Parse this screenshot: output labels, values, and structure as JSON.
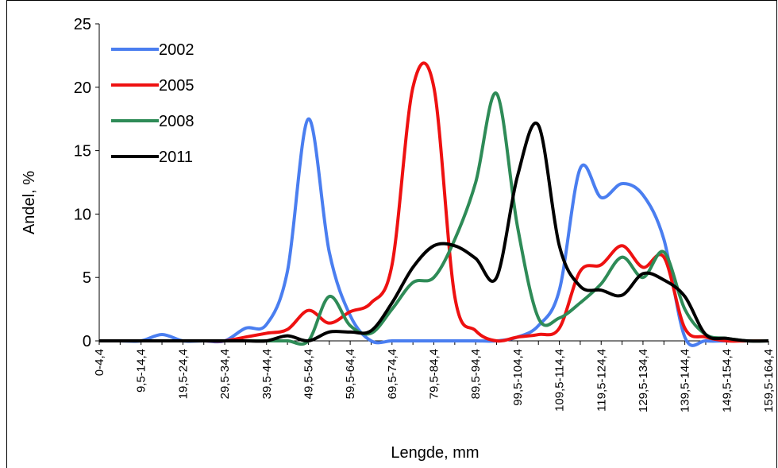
{
  "chart_data": {
    "type": "line",
    "smooth": true,
    "x_label": "Lengde, mm",
    "y_label": "Andel, %",
    "categories": [
      "0-4,4",
      null,
      "9,5-14,4",
      null,
      "19,5-24,4",
      null,
      "29,5-34,4",
      null,
      "39,5-44,4",
      null,
      "49,5-54,4",
      null,
      "59,5-64,4",
      null,
      "69,5-74,4",
      null,
      "79,5-84,4",
      null,
      "89,5-94,4",
      null,
      "99,5-104,4",
      null,
      "109,5-114,4",
      null,
      "119,5-124,4",
      null,
      "129,5-134,4",
      null,
      "139,5-144,4",
      null,
      "149,5-154,4",
      null,
      "159,5-164,4"
    ],
    "ylim": [
      0,
      25
    ],
    "yticks": [
      0,
      5,
      10,
      15,
      20,
      25
    ],
    "series": [
      {
        "name": "2002",
        "color": "#4a7ef0",
        "values": [
          0,
          0,
          0,
          0.5,
          0,
          0,
          0,
          1.0,
          1.3,
          5.5,
          17.5,
          7,
          2,
          0,
          0,
          0,
          0,
          0,
          0,
          0,
          0.3,
          1.2,
          4,
          13.6,
          11.3,
          12.4,
          11.5,
          8,
          0.3,
          0,
          0,
          0,
          0
        ]
      },
      {
        "name": "2005",
        "color": "#ee1111",
        "values": [
          0,
          0,
          0,
          0,
          0,
          0,
          0,
          0.3,
          0.6,
          0.9,
          2.4,
          1.4,
          2.3,
          3.0,
          6,
          20,
          20,
          3.5,
          0.8,
          0,
          0.3,
          0.5,
          1.0,
          5.5,
          6.0,
          7.5,
          5.8,
          6.6,
          1.0,
          0.3,
          0,
          0,
          0
        ]
      },
      {
        "name": "2008",
        "color": "#2e8b57",
        "values": [
          0,
          0,
          0,
          0,
          0,
          0,
          0,
          0,
          0,
          0,
          0,
          3.5,
          1.2,
          0.6,
          2.5,
          4.6,
          5.0,
          8,
          12.5,
          19.5,
          9,
          1.8,
          1.8,
          3.0,
          4.5,
          6.6,
          5.0,
          7.0,
          2.5,
          0.5,
          0.2,
          0,
          0
        ]
      },
      {
        "name": "2011",
        "color": "#000000",
        "values": [
          0,
          0,
          0,
          0,
          0,
          0,
          0,
          0,
          0,
          0.4,
          0,
          0.7,
          0.7,
          0.8,
          3,
          5.8,
          7.5,
          7.5,
          6.5,
          5,
          13,
          17,
          7.5,
          4.3,
          4.0,
          3.6,
          5.3,
          4.8,
          3.5,
          0.5,
          0.2,
          0,
          0
        ]
      }
    ]
  }
}
